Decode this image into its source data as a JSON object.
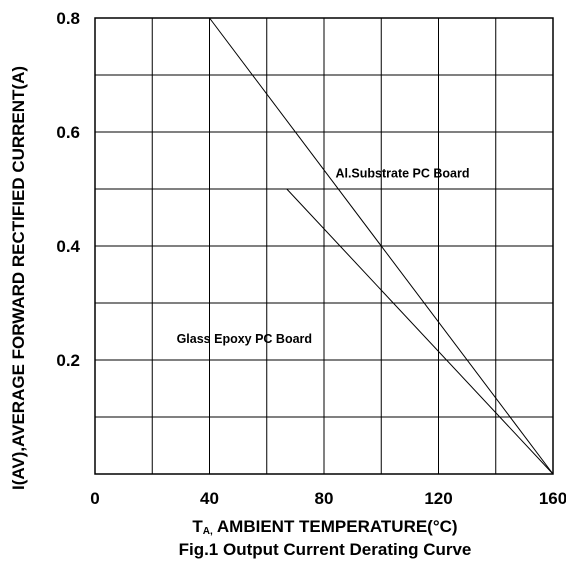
{
  "chart_data": {
    "type": "line",
    "title": "",
    "caption": "Fig.1 Output Current Derating Curve",
    "xlabel": {
      "subscript_prefix": "T",
      "subscript": "A,",
      "rest": " AMBIENT TEMPERATURE(°C)"
    },
    "ylabel": "I(AV),AVERAGE FORWARD RECTIFIED CURRENT(A)",
    "xlim": [
      0,
      160
    ],
    "ylim": [
      0,
      0.8
    ],
    "grid": true,
    "x_ticks": [
      {
        "value": 0,
        "label": "0"
      },
      {
        "value": 40,
        "label": "40"
      },
      {
        "value": 80,
        "label": "80"
      },
      {
        "value": 120,
        "label": "120"
      },
      {
        "value": 160,
        "label": "160"
      }
    ],
    "y_ticks": [
      {
        "value": 0.2,
        "label": "0.2"
      },
      {
        "value": 0.4,
        "label": "0.4"
      },
      {
        "value": 0.6,
        "label": "0.6"
      },
      {
        "value": 0.8,
        "label": "0.8"
      }
    ],
    "x_grid_values": [
      0,
      20,
      40,
      60,
      80,
      100,
      120,
      140,
      160
    ],
    "y_grid_values": [
      0,
      0.1,
      0.2,
      0.3,
      0.4,
      0.5,
      0.6,
      0.7,
      0.8
    ],
    "series": [
      {
        "name": "Al.Substrate PC Board",
        "x": [
          40,
          160
        ],
        "y": [
          0.8,
          0
        ]
      },
      {
        "name": "Glass Epoxy PC Board",
        "x": [
          67,
          160
        ],
        "y": [
          0.5,
          0
        ]
      }
    ],
    "annotations": [
      {
        "text": "Al.Substrate PC Board",
        "x": 84,
        "y": 0.52
      },
      {
        "text": "Glass Epoxy PC Board",
        "x": 28.5,
        "y": 0.23
      }
    ]
  }
}
